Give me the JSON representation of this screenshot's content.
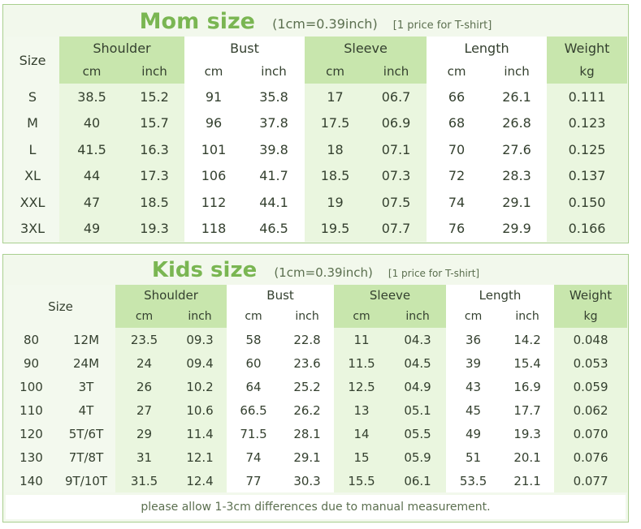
{
  "mom": {
    "title": "Mom size",
    "conversion": "(1cm=0.39inch)",
    "price_note": "[1 price for T-shirt]",
    "size_header": "Size",
    "groups": [
      "Shoulder",
      "Bust",
      "Sleeve",
      "Length",
      "Weight"
    ],
    "units": [
      "cm",
      "inch",
      "cm",
      "inch",
      "cm",
      "inch",
      "cm",
      "inch",
      "kg"
    ],
    "rows": [
      [
        "S",
        "38.5",
        "15.2",
        "91",
        "35.8",
        "17",
        "06.7",
        "66",
        "26.1",
        "0.111"
      ],
      [
        "M",
        "40",
        "15.7",
        "96",
        "37.8",
        "17.5",
        "06.9",
        "68",
        "26.8",
        "0.123"
      ],
      [
        "L",
        "41.5",
        "16.3",
        "101",
        "39.8",
        "18",
        "07.1",
        "70",
        "27.6",
        "0.125"
      ],
      [
        "XL",
        "44",
        "17.3",
        "106",
        "41.7",
        "18.5",
        "07.3",
        "72",
        "28.3",
        "0.137"
      ],
      [
        "XXL",
        "47",
        "18.5",
        "112",
        "44.1",
        "19",
        "07.5",
        "74",
        "29.1",
        "0.150"
      ],
      [
        "3XL",
        "49",
        "19.3",
        "118",
        "46.5",
        "19.5",
        "07.7",
        "76",
        "29.9",
        "0.166"
      ]
    ]
  },
  "kids": {
    "title": "Kids size",
    "conversion": "(1cm=0.39inch)",
    "price_note": "[1 price for T-shirt]",
    "size_header": "Size",
    "groups": [
      "Shoulder",
      "Bust",
      "Sleeve",
      "Length",
      "Weight"
    ],
    "units": [
      "cm",
      "inch",
      "cm",
      "inch",
      "cm",
      "inch",
      "cm",
      "inch",
      "kg"
    ],
    "rows": [
      [
        "80",
        "12M",
        "23.5",
        "09.3",
        "58",
        "22.8",
        "11",
        "04.3",
        "36",
        "14.2",
        "0.048"
      ],
      [
        "90",
        "24M",
        "24",
        "09.4",
        "60",
        "23.6",
        "11.5",
        "04.5",
        "39",
        "15.4",
        "0.053"
      ],
      [
        "100",
        "3T",
        "26",
        "10.2",
        "64",
        "25.2",
        "12.5",
        "04.9",
        "43",
        "16.9",
        "0.059"
      ],
      [
        "110",
        "4T",
        "27",
        "10.6",
        "66.5",
        "26.2",
        "13",
        "05.1",
        "45",
        "17.7",
        "0.062"
      ],
      [
        "120",
        "5T/6T",
        "29",
        "11.4",
        "71.5",
        "28.1",
        "14",
        "05.5",
        "49",
        "19.3",
        "0.070"
      ],
      [
        "130",
        "7T/8T",
        "31",
        "12.1",
        "74",
        "29.1",
        "15",
        "05.9",
        "51",
        "20.1",
        "0.076"
      ],
      [
        "140",
        "9T/10T",
        "31.5",
        "12.4",
        "77",
        "30.3",
        "15.5",
        "06.1",
        "53.5",
        "21.1",
        "0.077"
      ]
    ],
    "footer_note": "please allow 1-3cm differences due to manual measurement."
  },
  "colors": {
    "accent_green": "#7ab652",
    "header_green": "#c8e6ad",
    "column_light_green": "#eaf6df",
    "panel_border": "#a9cf8f"
  }
}
